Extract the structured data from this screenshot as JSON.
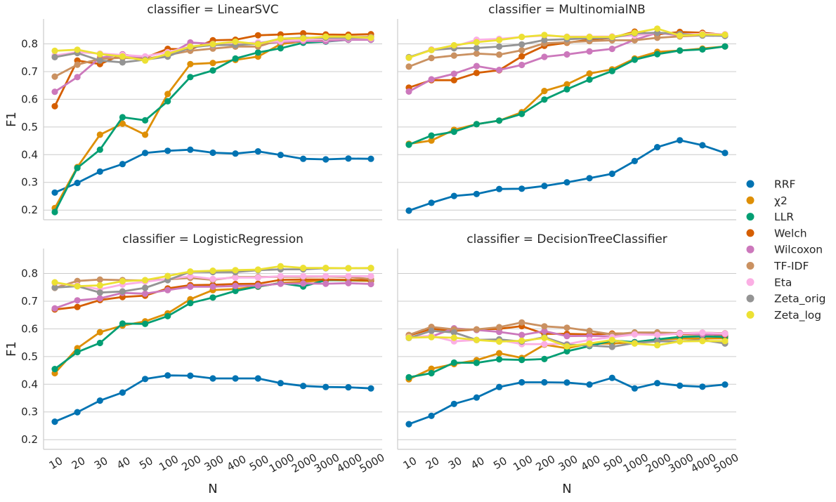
{
  "chart_data": {
    "type": "line",
    "shared": {
      "x_categories": [
        "10",
        "20",
        "30",
        "40",
        "50",
        "100",
        "200",
        "300",
        "400",
        "500",
        "1000",
        "2000",
        "3000",
        "4000",
        "5000"
      ],
      "xlabel": "N",
      "ylabel": "F1",
      "ylim": [
        0.165,
        0.89
      ],
      "yticks": [
        0.2,
        0.3,
        0.4,
        0.5,
        0.6,
        0.7,
        0.8
      ],
      "ytick_labels": [
        "0.2",
        "0.3",
        "0.4",
        "0.5",
        "0.6",
        "0.7",
        "0.8"
      ],
      "grid": "horizontal",
      "legend": "right",
      "series_meta": [
        {
          "name": "RRF",
          "color": "#0173b2"
        },
        {
          "name": "χ2",
          "color": "#de8f05"
        },
        {
          "name": "LLR",
          "color": "#029e73"
        },
        {
          "name": "Welch",
          "color": "#d55e00"
        },
        {
          "name": "Wilcoxon",
          "color": "#cc78bc"
        },
        {
          "name": "TF-IDF",
          "color": "#ca9161"
        },
        {
          "name": "Eta",
          "color": "#fbafe4"
        },
        {
          "name": "Zeta_orig",
          "color": "#949494"
        },
        {
          "name": "Zeta_log",
          "color": "#ece133"
        }
      ]
    },
    "panels": [
      {
        "title": "classifier = LinearSVC",
        "series": [
          {
            "name": "RRF",
            "values": [
              0.263,
              0.298,
              0.339,
              0.366,
              0.406,
              0.414,
              0.418,
              0.407,
              0.404,
              0.412,
              0.399,
              0.385,
              0.383,
              0.386,
              0.385
            ]
          },
          {
            "name": "χ2",
            "values": [
              0.207,
              0.355,
              0.472,
              0.512,
              0.472,
              0.619,
              0.727,
              0.731,
              0.742,
              0.754,
              0.799,
              0.81,
              0.815,
              0.82,
              0.825
            ]
          },
          {
            "name": "LLR",
            "values": [
              0.193,
              0.352,
              0.418,
              0.535,
              0.524,
              0.593,
              0.68,
              0.704,
              0.747,
              0.769,
              0.784,
              0.804,
              0.808,
              0.815,
              0.815
            ]
          },
          {
            "name": "Welch",
            "values": [
              0.575,
              0.74,
              0.727,
              0.762,
              0.75,
              0.782,
              0.78,
              0.813,
              0.815,
              0.831,
              0.834,
              0.838,
              0.834,
              0.833,
              0.835
            ]
          },
          {
            "name": "Wilcoxon",
            "values": [
              0.627,
              0.68,
              0.75,
              0.762,
              0.745,
              0.76,
              0.805,
              0.8,
              0.8,
              0.8,
              0.807,
              0.81,
              0.81,
              0.815,
              0.815
            ]
          },
          {
            "name": "TF-IDF",
            "values": [
              0.682,
              0.725,
              0.746,
              0.75,
              0.745,
              0.76,
              0.775,
              0.783,
              0.79,
              0.79,
              0.815,
              0.82,
              0.825,
              0.825,
              0.825
            ]
          },
          {
            "name": "Eta",
            "values": [
              0.758,
              0.77,
              0.765,
              0.76,
              0.755,
              0.77,
              0.79,
              0.795,
              0.8,
              0.805,
              0.81,
              0.815,
              0.818,
              0.82,
              0.82
            ]
          },
          {
            "name": "Zeta_orig",
            "values": [
              0.752,
              0.767,
              0.74,
              0.733,
              0.743,
              0.754,
              0.787,
              0.796,
              0.796,
              0.8,
              0.819,
              0.822,
              0.822,
              0.822,
              0.822
            ]
          },
          {
            "name": "Zeta_log",
            "values": [
              0.775,
              0.779,
              0.763,
              0.755,
              0.74,
              0.764,
              0.79,
              0.799,
              0.808,
              0.799,
              0.819,
              0.82,
              0.826,
              0.826,
              0.822
            ]
          }
        ]
      },
      {
        "title": "classifier = MultinomialNB",
        "series": [
          {
            "name": "RRF",
            "values": [
              0.198,
              0.226,
              0.251,
              0.258,
              0.276,
              0.277,
              0.287,
              0.3,
              0.315,
              0.331,
              0.377,
              0.427,
              0.452,
              0.434,
              0.406
            ]
          },
          {
            "name": "χ2",
            "values": [
              0.439,
              0.451,
              0.49,
              0.51,
              0.523,
              0.553,
              0.63,
              0.654,
              0.693,
              0.708,
              0.747,
              0.771,
              0.776,
              0.783,
              0.791
            ]
          },
          {
            "name": "LLR",
            "values": [
              0.436,
              0.469,
              0.483,
              0.51,
              0.523,
              0.547,
              0.599,
              0.636,
              0.671,
              0.702,
              0.743,
              0.763,
              0.776,
              0.78,
              0.791
            ]
          },
          {
            "name": "Welch",
            "values": [
              0.642,
              0.669,
              0.669,
              0.695,
              0.705,
              0.755,
              0.793,
              0.804,
              0.815,
              0.822,
              0.844,
              0.834,
              0.843,
              0.84,
              0.833
            ]
          },
          {
            "name": "Wilcoxon",
            "values": [
              0.628,
              0.672,
              0.692,
              0.72,
              0.706,
              0.724,
              0.753,
              0.762,
              0.773,
              0.782,
              0.815,
              0.84,
              0.831,
              0.836,
              0.829
            ]
          },
          {
            "name": "TF-IDF",
            "values": [
              0.718,
              0.749,
              0.758,
              0.765,
              0.761,
              0.777,
              0.802,
              0.806,
              0.81,
              0.813,
              0.813,
              0.822,
              0.827,
              0.831,
              0.831
            ]
          },
          {
            "name": "Eta",
            "values": [
              0.75,
              0.78,
              0.79,
              0.815,
              0.818,
              0.825,
              0.83,
              0.826,
              0.826,
              0.827,
              0.83,
              0.84,
              0.835,
              0.836,
              0.835
            ]
          },
          {
            "name": "Zeta_orig",
            "values": [
              0.752,
              0.778,
              0.784,
              0.785,
              0.79,
              0.798,
              0.814,
              0.817,
              0.82,
              0.822,
              0.838,
              0.84,
              0.836,
              0.83,
              0.829
            ]
          },
          {
            "name": "Zeta_log",
            "values": [
              0.75,
              0.778,
              0.795,
              0.806,
              0.814,
              0.825,
              0.832,
              0.825,
              0.825,
              0.825,
              0.84,
              0.855,
              0.83,
              0.834,
              0.833
            ]
          }
        ]
      },
      {
        "title": "classifier = LogisticRegression",
        "series": [
          {
            "name": "RRF",
            "values": [
              0.265,
              0.299,
              0.341,
              0.37,
              0.419,
              0.432,
              0.431,
              0.421,
              0.421,
              0.421,
              0.404,
              0.394,
              0.39,
              0.389,
              0.385
            ]
          },
          {
            "name": "χ2",
            "values": [
              0.44,
              0.53,
              0.588,
              0.612,
              0.627,
              0.656,
              0.707,
              0.74,
              0.744,
              0.752,
              0.766,
              0.77,
              0.776,
              0.775,
              0.773
            ]
          },
          {
            "name": "LLR",
            "values": [
              0.455,
              0.516,
              0.549,
              0.619,
              0.618,
              0.646,
              0.693,
              0.713,
              0.737,
              0.753,
              0.765,
              0.753,
              0.776,
              0.776,
              0.776
            ]
          },
          {
            "name": "Welch",
            "values": [
              0.67,
              0.679,
              0.704,
              0.715,
              0.72,
              0.746,
              0.758,
              0.759,
              0.762,
              0.763,
              0.777,
              0.778,
              0.778,
              0.777,
              0.776
            ]
          },
          {
            "name": "Wilcoxon",
            "values": [
              0.674,
              0.703,
              0.71,
              0.73,
              0.727,
              0.74,
              0.752,
              0.752,
              0.755,
              0.756,
              0.763,
              0.764,
              0.763,
              0.765,
              0.762
            ]
          },
          {
            "name": "TF-IDF",
            "values": [
              0.748,
              0.773,
              0.778,
              0.776,
              0.775,
              0.779,
              0.784,
              0.777,
              0.787,
              0.787,
              0.788,
              0.788,
              0.789,
              0.787,
              0.78
            ]
          },
          {
            "name": "Eta",
            "values": [
              0.765,
              0.757,
              0.743,
              0.76,
              0.77,
              0.78,
              0.79,
              0.78,
              0.785,
              0.785,
              0.79,
              0.79,
              0.79,
              0.79,
              0.79
            ]
          },
          {
            "name": "Zeta_orig",
            "values": [
              0.749,
              0.754,
              0.731,
              0.735,
              0.748,
              0.776,
              0.806,
              0.805,
              0.805,
              0.812,
              0.815,
              0.815,
              0.819,
              0.819,
              0.819
            ]
          },
          {
            "name": "Zeta_log",
            "values": [
              0.768,
              0.754,
              0.757,
              0.772,
              0.776,
              0.791,
              0.807,
              0.81,
              0.812,
              0.814,
              0.826,
              0.82,
              0.82,
              0.819,
              0.82
            ]
          }
        ]
      },
      {
        "title": "classifier = DecisionTreeClassifier",
        "series": [
          {
            "name": "RRF",
            "values": [
              0.256,
              0.286,
              0.329,
              0.352,
              0.39,
              0.407,
              0.407,
              0.406,
              0.399,
              0.423,
              0.385,
              0.404,
              0.395,
              0.391,
              0.399
            ]
          },
          {
            "name": "χ2",
            "values": [
              0.418,
              0.456,
              0.473,
              0.487,
              0.512,
              0.495,
              0.543,
              0.53,
              0.547,
              0.547,
              0.552,
              0.561,
              0.565,
              0.565,
              0.566
            ]
          },
          {
            "name": "LLR",
            "values": [
              0.425,
              0.44,
              0.478,
              0.477,
              0.49,
              0.488,
              0.491,
              0.519,
              0.538,
              0.558,
              0.552,
              0.562,
              0.571,
              0.573,
              0.571
            ]
          },
          {
            "name": "Welch",
            "values": [
              0.576,
              0.6,
              0.593,
              0.598,
              0.6,
              0.61,
              0.582,
              0.582,
              0.58,
              0.583,
              0.584,
              0.583,
              0.581,
              0.58,
              0.579
            ]
          },
          {
            "name": "Wilcoxon",
            "values": [
              0.571,
              0.572,
              0.602,
              0.596,
              0.589,
              0.578,
              0.592,
              0.574,
              0.575,
              0.573,
              0.585,
              0.585,
              0.585,
              0.58,
              0.581
            ]
          },
          {
            "name": "TF-IDF",
            "values": [
              0.578,
              0.607,
              0.598,
              0.598,
              0.606,
              0.623,
              0.609,
              0.604,
              0.593,
              0.58,
              0.587,
              0.587,
              0.584,
              0.586,
              0.584
            ]
          },
          {
            "name": "Eta",
            "values": [
              0.57,
              0.575,
              0.555,
              0.56,
              0.56,
              0.545,
              0.545,
              0.545,
              0.56,
              0.57,
              0.58,
              0.578,
              0.583,
              0.586,
              0.583
            ]
          },
          {
            "name": "Zeta_orig",
            "values": [
              0.567,
              0.593,
              0.587,
              0.56,
              0.562,
              0.554,
              0.57,
              0.543,
              0.54,
              0.535,
              0.549,
              0.555,
              0.555,
              0.56,
              0.547
            ]
          },
          {
            "name": "Zeta_log",
            "values": [
              0.568,
              0.57,
              0.568,
              0.56,
              0.554,
              0.557,
              0.567,
              0.537,
              0.547,
              0.56,
              0.547,
              0.541,
              0.555,
              0.556,
              0.556
            ]
          }
        ]
      }
    ]
  }
}
